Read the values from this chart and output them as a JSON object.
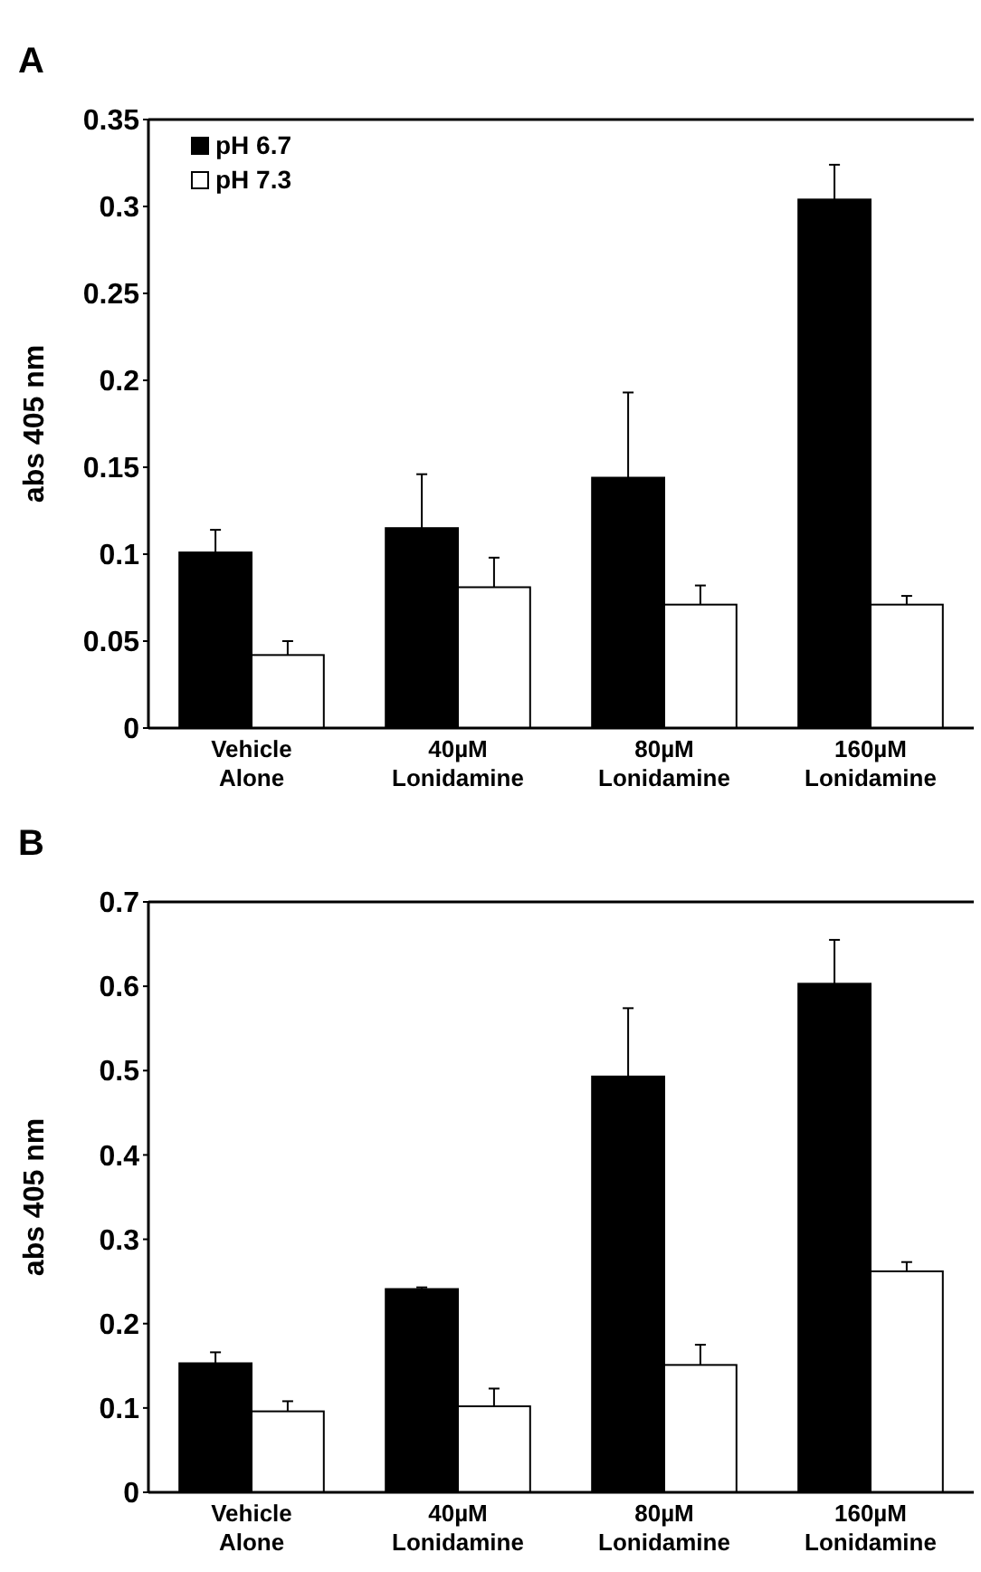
{
  "chart_data": [
    {
      "type": "bar",
      "title": "A",
      "ylabel": "abs 405 nm",
      "categories": [
        "Vehicle\nAlone",
        "40µM\nLonidamine",
        "80µM\nLonidamine",
        "160µM\nLonidamine"
      ],
      "ylim": [
        0,
        0.35
      ],
      "yticks": [
        0,
        0.05,
        0.1,
        0.15,
        0.2,
        0.25,
        0.3,
        0.35
      ],
      "legend": "top left",
      "series": [
        {
          "name": "pH 6.7",
          "color": "#000000",
          "values": [
            0.101,
            0.115,
            0.144,
            0.304
          ],
          "errors": [
            [
              0.101,
              0.114
            ],
            [
              0.115,
              0.146
            ],
            [
              0.144,
              0.193
            ],
            [
              0.304,
              0.324
            ]
          ]
        },
        {
          "name": "pH 7.3",
          "color": "#ffffff",
          "values": [
            0.042,
            0.081,
            0.071,
            0.071
          ],
          "errors": [
            [
              0.042,
              0.05
            ],
            [
              0.081,
              0.098
            ],
            [
              0.071,
              0.082
            ],
            [
              0.071,
              0.076
            ]
          ]
        }
      ]
    },
    {
      "type": "bar",
      "title": "B",
      "ylabel": "abs 405 nm",
      "categories": [
        "Vehicle\nAlone",
        "40µM\nLonidamine",
        "80µM\nLonidamine",
        "160µM\nLonidamine"
      ],
      "ylim": [
        0,
        0.7
      ],
      "yticks": [
        0,
        0.1,
        0.2,
        0.3,
        0.4,
        0.5,
        0.6,
        0.7
      ],
      "series": [
        {
          "color": "#000000",
          "values": [
            0.153,
            0.241,
            0.493,
            0.603
          ],
          "errors": [
            [
              0.153,
              0.166
            ],
            [
              0.241,
              0.243
            ],
            [
              0.493,
              0.574
            ],
            [
              0.603,
              0.655
            ]
          ]
        },
        {
          "color": "#ffffff",
          "values": [
            0.096,
            0.102,
            0.151,
            0.262
          ],
          "errors": [
            [
              0.096,
              0.108
            ],
            [
              0.102,
              0.123
            ],
            [
              0.151,
              0.175
            ],
            [
              0.262,
              0.273
            ]
          ]
        }
      ]
    }
  ]
}
